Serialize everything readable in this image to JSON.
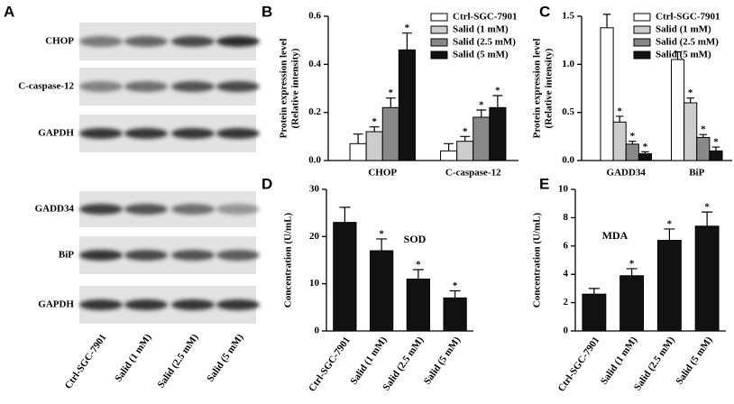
{
  "blot": {
    "panel": "A",
    "rows": [
      "CHOP",
      "C-caspase-12",
      "GAPDH",
      "GADD34",
      "BiP",
      "GAPDH"
    ],
    "lanes": [
      "Ctrl-SGC-7901",
      "Salid (1 mM)",
      "Salid (2.5 mM)",
      "Salid (5 mM)"
    ]
  },
  "chart_data": [
    {
      "type": "bar",
      "panel": "B",
      "ylabel": [
        "Protein expression level",
        "(Relative intensity)"
      ],
      "categories": [
        "CHOP",
        "C-caspase-12"
      ],
      "series": [
        {
          "name": "Ctrl-SGC-7901",
          "color": "#ffffff",
          "values": [
            0.07,
            0.04
          ],
          "errors": [
            0.04,
            0.03
          ],
          "stars": [
            null,
            null
          ]
        },
        {
          "name": "Salid (1 mM)",
          "color": "#cccccc",
          "values": [
            0.12,
            0.08
          ],
          "errors": [
            0.02,
            0.02
          ],
          "stars": [
            "*",
            "*"
          ]
        },
        {
          "name": "Salid (2.5 mM)",
          "color": "#888888",
          "values": [
            0.22,
            0.18
          ],
          "errors": [
            0.04,
            0.03
          ],
          "stars": [
            "*",
            "*"
          ]
        },
        {
          "name": "Salid (5 mM)",
          "color": "#111111",
          "values": [
            0.46,
            0.22
          ],
          "errors": [
            0.07,
            0.05
          ],
          "stars": [
            "*",
            "*"
          ]
        }
      ],
      "ylim": [
        0,
        0.6
      ],
      "yticks": [
        {
          "value": 0,
          "label": "0.0"
        },
        0.2,
        0.4,
        0.6
      ],
      "legend": "upper right"
    },
    {
      "type": "bar",
      "panel": "C",
      "ylabel": [
        "Protein expression level",
        "(Relative intensity)"
      ],
      "categories": [
        "GADD34",
        "BiP"
      ],
      "series": [
        {
          "name": "Ctrl-SGC-7901",
          "color": "#ffffff",
          "values": [
            1.38,
            1.05
          ],
          "errors": [
            0.14,
            0.08
          ],
          "stars": [
            null,
            null
          ]
        },
        {
          "name": "Salid (1 mM)",
          "color": "#cccccc",
          "values": [
            0.4,
            0.6
          ],
          "errors": [
            0.06,
            0.05
          ],
          "stars": [
            "*",
            "*"
          ]
        },
        {
          "name": "Salid (2.5 mM)",
          "color": "#888888",
          "values": [
            0.17,
            0.24
          ],
          "errors": [
            0.03,
            0.03
          ],
          "stars": [
            "*",
            "*"
          ]
        },
        {
          "name": "Salid (5 mM)",
          "color": "#111111",
          "values": [
            0.07,
            0.1
          ],
          "errors": [
            0.02,
            0.04
          ],
          "stars": [
            "*",
            "*"
          ]
        }
      ],
      "ylim": [
        0,
        1.5
      ],
      "yticks": [
        {
          "value": 0,
          "label": "0.0"
        },
        {
          "value": 0.5,
          "label": "0.5"
        },
        {
          "value": 1,
          "label": "1.0"
        },
        {
          "value": 1.5,
          "label": "1.5"
        }
      ],
      "legend": "upper right"
    },
    {
      "type": "bar",
      "panel": "D",
      "ylabel": "Concentration (U/mL)",
      "annotation": "SOD",
      "categories": [
        "Ctrl-SGC-7901",
        "Salid (1 mM)",
        "Salid (2.5 mM)",
        "Salid (5 mM)"
      ],
      "series": [
        {
          "color": "#111111",
          "values": [
            23,
            17,
            11,
            7
          ],
          "errors": [
            3.2,
            2.5,
            2,
            1.5
          ],
          "stars": [
            null,
            "*",
            "*",
            "*"
          ]
        }
      ],
      "ylim": [
        0,
        30
      ],
      "yticks": [
        0,
        10,
        20,
        30
      ]
    },
    {
      "type": "bar",
      "panel": "E",
      "ylabel": "Concentration (U/mL)",
      "annotation": "MDA",
      "categories": [
        "Ctrl-SGC-7901",
        "Salid (1 mM)",
        "Salid (2.5 mM)",
        "Salid (5 mM)"
      ],
      "series": [
        {
          "color": "#111111",
          "values": [
            2.6,
            3.9,
            6.4,
            7.4
          ],
          "errors": [
            0.4,
            0.5,
            0.8,
            1.0
          ],
          "stars": [
            null,
            "*",
            "*",
            "*"
          ]
        }
      ],
      "ylim": [
        0,
        10
      ],
      "yticks": [
        0,
        2,
        4,
        6,
        8,
        10
      ]
    }
  ]
}
